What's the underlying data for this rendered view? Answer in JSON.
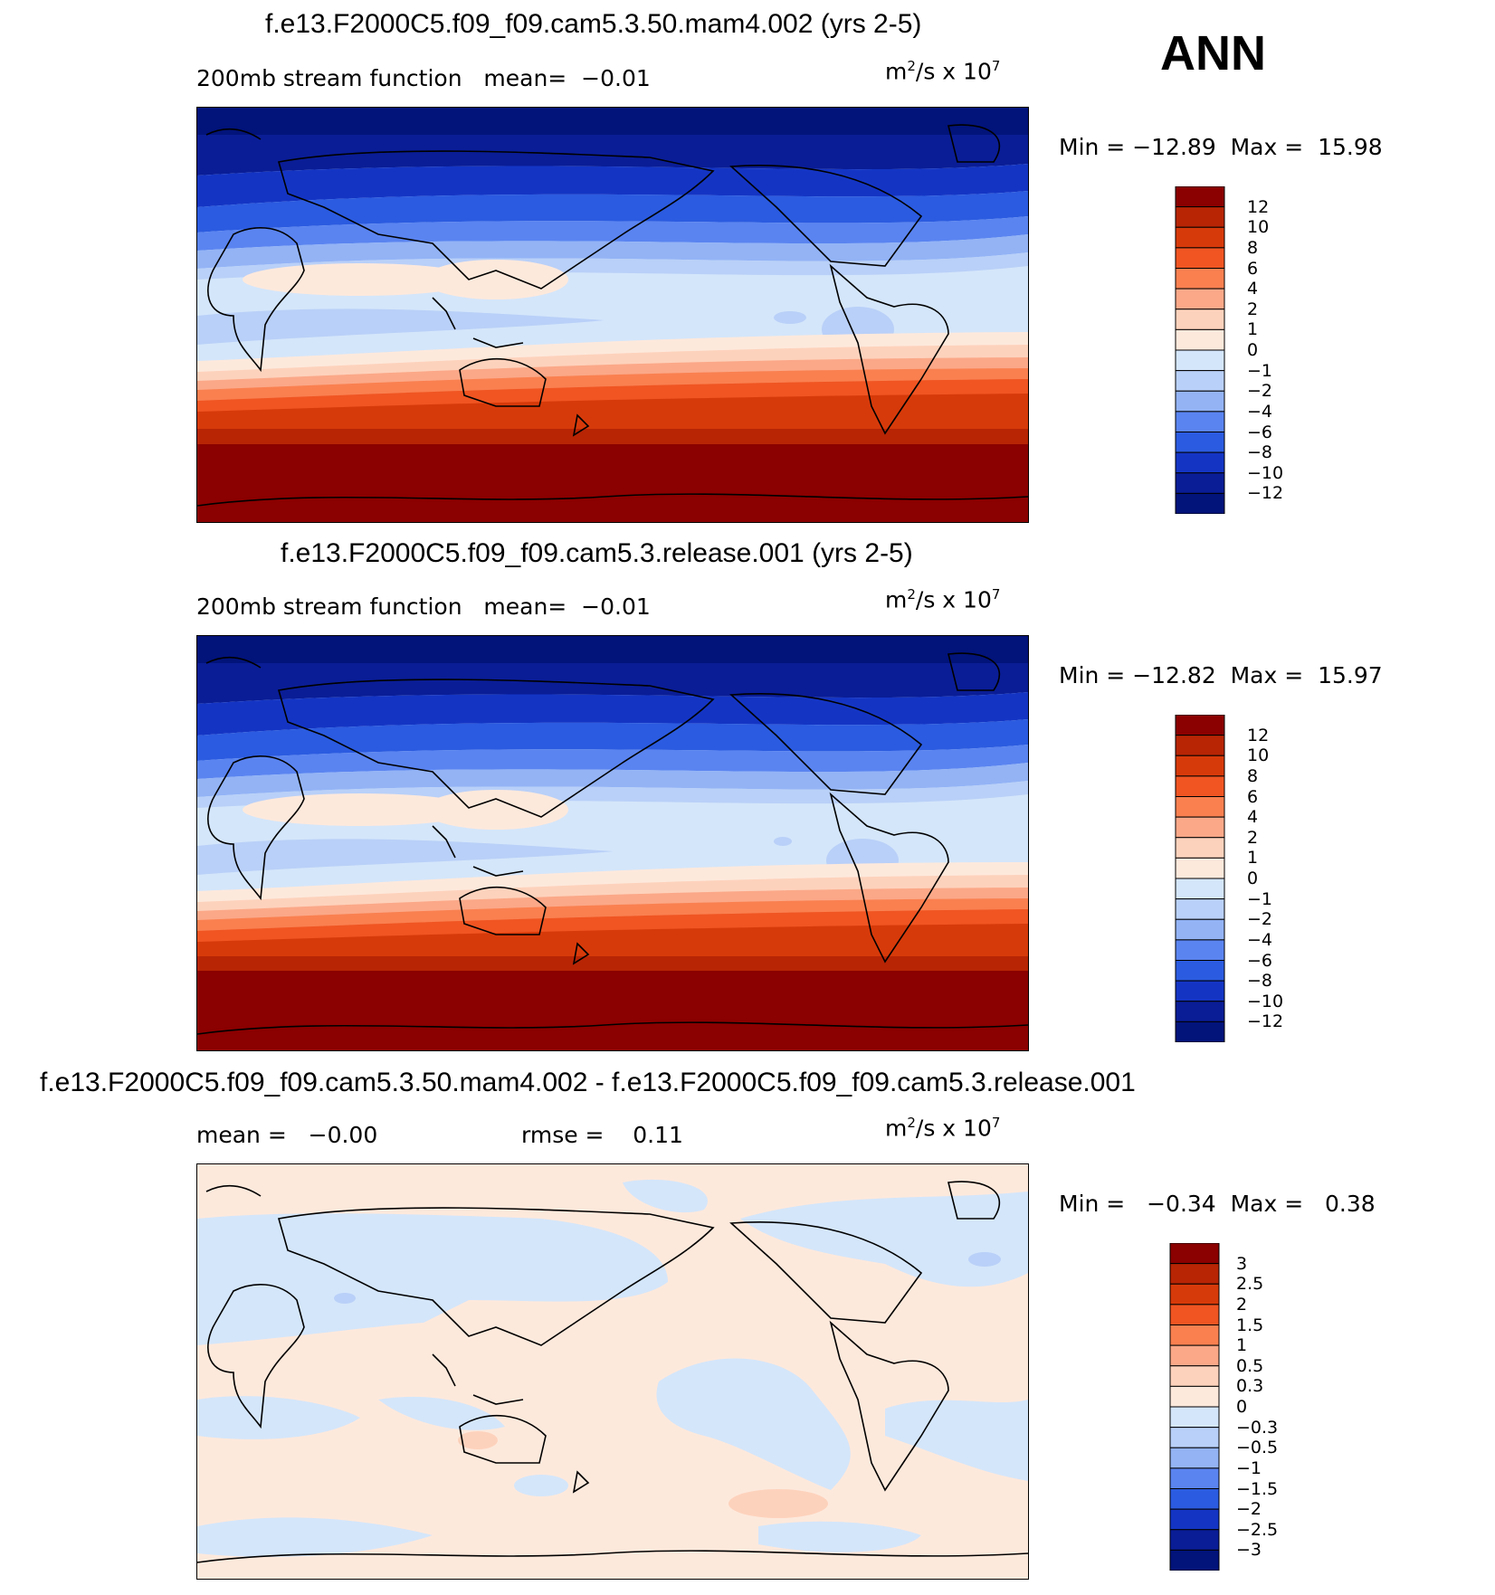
{
  "season": "ANN",
  "units_base": "m",
  "units_exp": "2",
  "units_mid": "/s x 10",
  "units_exp2": "7",
  "panels": [
    {
      "title": "f.e13.F2000C5.f09_f09.cam5.3.50.mam4.002 (yrs 2-5)",
      "left_label": "200mb stream function   mean=  −0.01",
      "minmax": "Min = −12.89  Max =  15.98",
      "levels": [
        "12",
        "10",
        "8",
        "6",
        "4",
        "2",
        "1",
        "0",
        "−1",
        "−2",
        "−4",
        "−6",
        "−8",
        "−10",
        "−12"
      ]
    },
    {
      "title": "f.e13.F2000C5.f09_f09.cam5.3.release.001 (yrs 2-5)",
      "left_label": "200mb stream function   mean=  −0.01",
      "minmax": "Min = −12.82  Max =  15.97",
      "levels": [
        "12",
        "10",
        "8",
        "6",
        "4",
        "2",
        "1",
        "0",
        "−1",
        "−2",
        "−4",
        "−6",
        "−8",
        "−10",
        "−12"
      ]
    },
    {
      "title": "f.e13.F2000C5.f09_f09.cam5.3.50.mam4.002 - f.e13.F2000C5.f09_f09.cam5.3.release.001",
      "left_label": "mean =   −0.00",
      "rmse_label": "rmse =    0.11",
      "minmax": "Min =   −0.34  Max =   0.38",
      "levels": [
        "3",
        "2.5",
        "2",
        "1.5",
        "1",
        "0.5",
        "0.3",
        "0",
        "−0.3",
        "−0.5",
        "−1",
        "−1.5",
        "−2",
        "−2.5",
        "−3"
      ]
    }
  ],
  "chart_data": [
    {
      "type": "heatmap",
      "title": "f.e13.F2000C5.f09_f09.cam5.3.50.mam4.002 (yrs 2-5)",
      "variable": "200mb stream function",
      "mean": -0.01,
      "min": -12.89,
      "max": 15.98,
      "contour_levels": [
        -12,
        -10,
        -8,
        -6,
        -4,
        -2,
        -1,
        0,
        1,
        2,
        4,
        6,
        8,
        10,
        12
      ]
    },
    {
      "type": "heatmap",
      "title": "f.e13.F2000C5.f09_f09.cam5.3.release.001 (yrs 2-5)",
      "variable": "200mb stream function",
      "mean": -0.01,
      "min": -12.82,
      "max": 15.97,
      "contour_levels": [
        -12,
        -10,
        -8,
        -6,
        -4,
        -2,
        -1,
        0,
        1,
        2,
        4,
        6,
        8,
        10,
        12
      ]
    },
    {
      "type": "heatmap",
      "title": "f.e13.F2000C5.f09_f09.cam5.3.50.mam4.002 - f.e13.F2000C5.f09_f09.cam5.3.release.001",
      "mean": -0.0,
      "rmse": 0.11,
      "min": -0.34,
      "max": 0.38,
      "contour_levels": [
        -3,
        -2.5,
        -2,
        -1.5,
        -1,
        -0.5,
        -0.3,
        0,
        0.3,
        0.5,
        1,
        1.5,
        2,
        2.5,
        3
      ]
    }
  ],
  "colors": [
    "#8b0000",
    "#b72505",
    "#d73a0a",
    "#f05522",
    "#fa8050",
    "#fba888",
    "#fdd2bc",
    "#fde9dc",
    "#d4e6fa",
    "#b9d0f8",
    "#93b3f5",
    "#5a84f0",
    "#2b5be0",
    "#1435c4",
    "#0a1d96",
    "#02137a"
  ]
}
